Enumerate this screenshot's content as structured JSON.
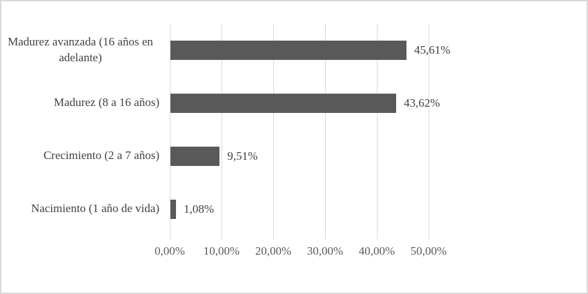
{
  "chart_data": {
    "type": "bar",
    "orientation": "horizontal",
    "title": "",
    "xlabel": "",
    "ylabel": "",
    "categories": [
      "Madurez avanzada (16 años en adelante)",
      "Madurez (8 a 16 años)",
      "Crecimiento (2 a 7 años)",
      "Nacimiento (1 año de vida)"
    ],
    "values": [
      45.61,
      43.62,
      9.51,
      1.08
    ],
    "data_labels": [
      "45,61%",
      "43,62%",
      "9,51%",
      "1,08%"
    ],
    "x_ticks": [
      {
        "value": 0,
        "label": "0,00%"
      },
      {
        "value": 10,
        "label": "10,00%"
      },
      {
        "value": 20,
        "label": "20,00%"
      },
      {
        "value": 30,
        "label": "30,00%"
      },
      {
        "value": 40,
        "label": "40,00%"
      },
      {
        "value": 50,
        "label": "50,00%"
      }
    ],
    "xlim": [
      0,
      50
    ],
    "grid": "vertical",
    "legend": "none",
    "colors": {
      "bar": "#595959",
      "gridline": "#d9d9d9",
      "tick_label": "#595959",
      "category_label": "#404040",
      "data_label": "#404040",
      "frame_border": "#d9d9d9",
      "background": "#ffffff"
    }
  }
}
